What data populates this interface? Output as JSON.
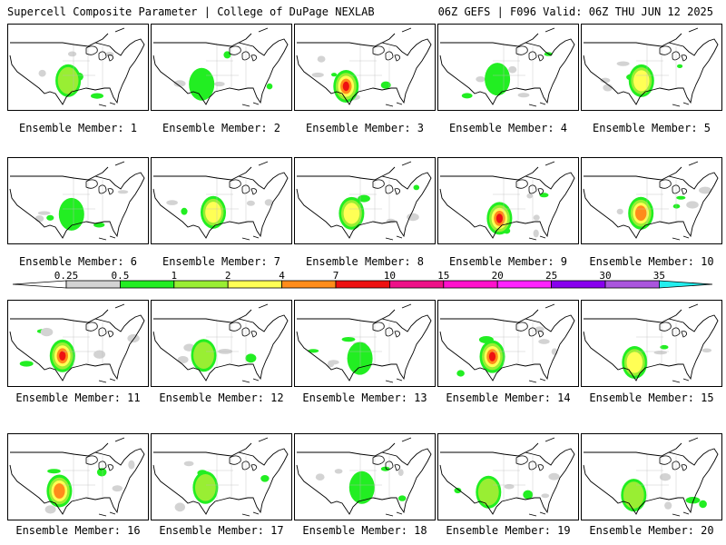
{
  "header": {
    "title_left": "Supercell Composite Parameter | College of DuPage NEXLAB",
    "title_right": "06Z GEFS | F096 Valid: 06Z THU JUN 12 2025"
  },
  "colorbar": {
    "labels": [
      "0.25",
      "0.5",
      "1",
      "2",
      "4",
      "7",
      "10",
      "15",
      "20",
      "25",
      "30",
      "35"
    ],
    "colors": [
      "#d3d3d3",
      "#22ee22",
      "#99ee33",
      "#ffff55",
      "#ff8c1a",
      "#ee1111",
      "#ee1188",
      "#ff11cc",
      "#ff22ff",
      "#8800ee",
      "#aa55dd",
      "#22eeee"
    ],
    "left_tail_color": "#ffffff"
  },
  "members": [
    {
      "caption": "Ensemble Member: 1",
      "level": 2
    },
    {
      "caption": "Ensemble Member: 2",
      "level": 1
    },
    {
      "caption": "Ensemble Member: 3",
      "level": 5
    },
    {
      "caption": "Ensemble Member: 4",
      "level": 1
    },
    {
      "caption": "Ensemble Member: 5",
      "level": 3
    },
    {
      "caption": "Ensemble Member: 6",
      "level": 1
    },
    {
      "caption": "Ensemble Member: 7",
      "level": 3
    },
    {
      "caption": "Ensemble Member: 8",
      "level": 3
    },
    {
      "caption": "Ensemble Member: 9",
      "level": 5
    },
    {
      "caption": "Ensemble Member: 10",
      "level": 4
    },
    {
      "caption": "Ensemble Member: 11",
      "level": 5
    },
    {
      "caption": "Ensemble Member: 12",
      "level": 2
    },
    {
      "caption": "Ensemble Member: 13",
      "level": 1
    },
    {
      "caption": "Ensemble Member: 14",
      "level": 5
    },
    {
      "caption": "Ensemble Member: 15",
      "level": 3
    },
    {
      "caption": "Ensemble Member: 16",
      "level": 4
    },
    {
      "caption": "Ensemble Member: 17",
      "level": 2
    },
    {
      "caption": "Ensemble Member: 18",
      "level": 1
    },
    {
      "caption": "Ensemble Member: 19",
      "level": 2
    },
    {
      "caption": "Ensemble Member: 20",
      "level": 2
    }
  ]
}
